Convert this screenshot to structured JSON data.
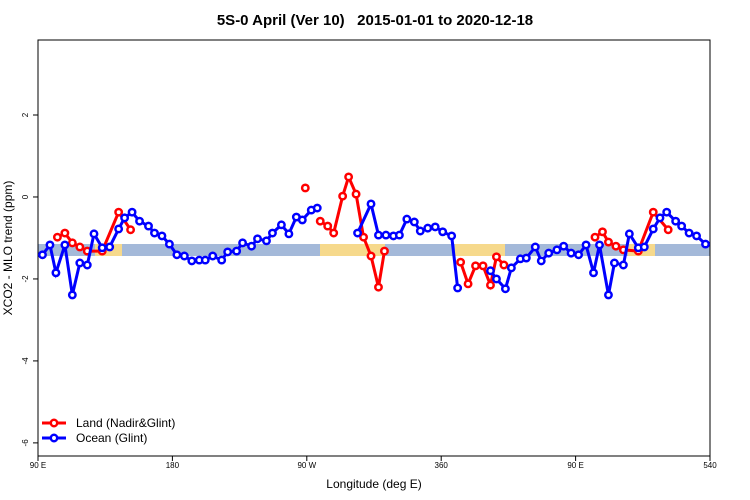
{
  "chart_data": {
    "type": "line",
    "title": "5S-0 April (Ver 10)   2015-01-01 to 2020-12-18",
    "x_label": "Longitude (deg E)",
    "y_label": "XCO2 - MLO trend (ppm)",
    "xlim": [
      90,
      540
    ],
    "ylim": [
      -6.32,
      3.83
    ],
    "xticks": [
      {
        "value": 90,
        "label": "90 E"
      },
      180,
      {
        "value": 270,
        "label": "90 W"
      },
      360,
      {
        "value": 450,
        "label": "90 E"
      },
      540
    ],
    "yticks": [
      -6,
      -4,
      -2,
      0,
      2
    ],
    "legend": "bottom-left",
    "series": [
      {
        "name": "Land (Nadir&Glint)",
        "color": "#ff0000",
        "x": [
          103,
          108,
          113,
          118,
          123,
          133,
          144,
          152,
          null,
          269,
          null,
          279,
          284,
          288,
          294,
          298,
          303,
          308,
          313,
          318,
          322,
          null,
          373,
          378,
          383,
          388,
          393,
          397,
          402,
          null,
          463,
          468,
          472,
          477,
          482,
          492,
          502,
          512
        ],
        "values": [
          -0.98,
          -0.88,
          -1.12,
          -1.22,
          -1.32,
          -1.32,
          -0.37,
          -0.8,
          null,
          0.22,
          null,
          -0.59,
          -0.71,
          -0.88,
          0.02,
          0.49,
          0.07,
          -0.98,
          -1.44,
          -2.2,
          -1.32,
          null,
          -1.59,
          -2.12,
          -1.68,
          -1.68,
          -2.15,
          -1.46,
          -1.66,
          null,
          -0.98,
          -0.85,
          -1.1,
          -1.2,
          -1.29,
          -1.32,
          -0.37,
          -0.8
        ]
      },
      {
        "name": "Ocean (Glint)",
        "color": "#0000ff",
        "x": [
          93,
          98,
          102,
          108,
          113,
          118,
          123,
          127.5,
          133,
          138,
          144,
          148,
          153,
          158,
          164,
          168,
          173,
          178,
          183,
          188,
          193,
          198,
          202,
          207,
          213,
          217,
          223,
          227,
          233,
          237,
          243,
          247,
          253,
          258,
          263,
          267,
          273,
          277,
          null,
          304,
          313,
          318,
          323,
          328,
          332,
          337,
          342,
          346,
          351,
          356,
          361,
          367,
          371,
          null,
          393,
          397,
          403,
          407,
          413,
          417,
          423,
          427,
          432,
          437.5,
          442,
          447,
          452,
          457,
          462,
          466,
          472,
          476,
          482,
          486,
          492,
          496,
          502,
          506.5,
          511,
          517,
          521,
          526,
          531,
          537
        ],
        "values": [
          -1.41,
          -1.17,
          -1.85,
          -1.17,
          -2.39,
          -1.61,
          -1.66,
          -0.9,
          -1.24,
          -1.22,
          -0.78,
          -0.51,
          -0.37,
          -0.59,
          -0.71,
          -0.88,
          -0.95,
          -1.15,
          -1.41,
          -1.44,
          -1.56,
          -1.54,
          -1.54,
          -1.44,
          -1.54,
          -1.34,
          -1.32,
          -1.12,
          -1.2,
          -1.02,
          -1.07,
          -0.88,
          -0.68,
          -0.9,
          -0.49,
          -0.56,
          -0.32,
          -0.27,
          null,
          -0.88,
          -0.17,
          -0.93,
          -0.93,
          -0.95,
          -0.93,
          -0.54,
          -0.61,
          -0.83,
          -0.76,
          -0.73,
          -0.85,
          -0.95,
          -2.22,
          null,
          -1.8,
          -2.0,
          -2.24,
          -1.73,
          -1.51,
          -1.49,
          -1.22,
          -1.56,
          -1.37,
          -1.29,
          -1.2,
          -1.37,
          -1.41,
          -1.17,
          -1.85,
          -1.17,
          -2.39,
          -1.61,
          -1.66,
          -0.9,
          -1.24,
          -1.22,
          -0.78,
          -0.51,
          -0.37,
          -0.59,
          -0.71,
          -0.88,
          -0.95,
          -1.15
        ]
      }
    ]
  }
}
